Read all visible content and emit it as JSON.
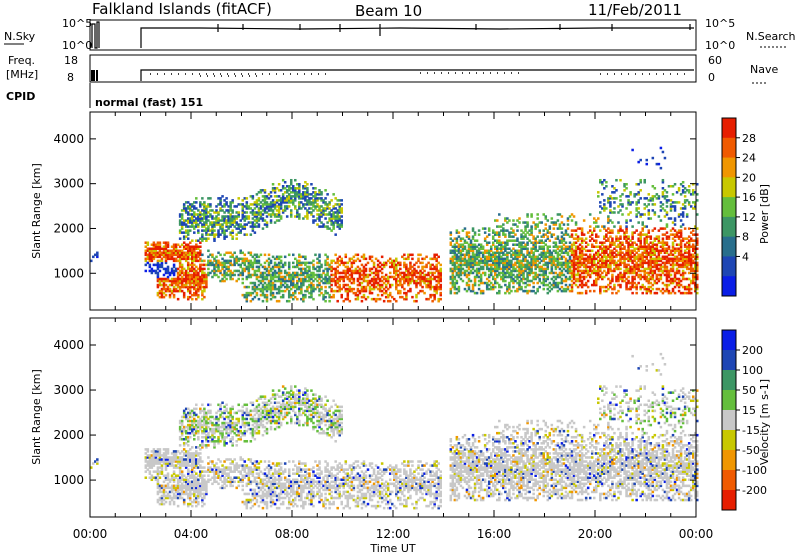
{
  "header": {
    "station": "Falkland Islands (fitACF)",
    "beam": "Beam 10",
    "date": "11/Feb/2011"
  },
  "panels": {
    "nsky_label": "N.Sky",
    "nsearch_label": "N.Search",
    "freq_label": "Freq.",
    "freq_unit": "[MHz]",
    "nave_label": "Nave",
    "cpid_label": "CPID",
    "cpid_value": "normal (fast) 151",
    "noise_ticks_left": [
      "10^5",
      "10^0"
    ],
    "noise_ticks_right": [
      "10^5",
      "10^0"
    ],
    "freq_ticks": [
      "18",
      "8"
    ],
    "nave_ticks": [
      "60",
      "0"
    ]
  },
  "colors": {
    "power_scale": [
      "#0a1ee6",
      "#1e46b4",
      "#286e8c",
      "#3c9664",
      "#64be3c",
      "#c8c800",
      "#f09600",
      "#f05a00",
      "#e61e00"
    ],
    "velocity_scale": [
      "#0a1ee6",
      "#1e46b4",
      "#3c9664",
      "#64be3c",
      "#c8c8c8",
      "#c8c800",
      "#f09600",
      "#f05a00",
      "#e61e00"
    ]
  },
  "chart_data": [
    {
      "type": "heatmap",
      "title": "",
      "quantity": "Power",
      "xlabel": "Time UT",
      "ylabel": "Slant Range [km]",
      "xlim": [
        "00:00",
        "00:00"
      ],
      "ylim": [
        180,
        4600
      ],
      "y_ticks": [
        "1000",
        "2000",
        "3000",
        "4000"
      ],
      "x_ticks": [
        "00:00",
        "04:00",
        "08:00",
        "12:00",
        "16:00",
        "20:00",
        "00:00"
      ],
      "colorbar": {
        "label": "Power [dB]",
        "ticks": [
          "4",
          "8",
          "12",
          "16",
          "20",
          "24",
          "28"
        ]
      }
    },
    {
      "type": "heatmap",
      "title": "",
      "quantity": "Velocity",
      "xlabel": "Time UT",
      "ylabel": "Slant Range [km]",
      "xlim": [
        "00:00",
        "00:00"
      ],
      "ylim": [
        180,
        4600
      ],
      "y_ticks": [
        "1000",
        "2000",
        "3000",
        "4000"
      ],
      "x_ticks": [
        "00:00",
        "04:00",
        "08:00",
        "12:00",
        "16:00",
        "20:00",
        "00:00"
      ],
      "colorbar": {
        "label": "Velocity [m s-1]",
        "ticks": [
          "200",
          "100",
          "50",
          "15",
          "-15",
          "-50",
          "-100",
          "-200"
        ]
      }
    }
  ]
}
